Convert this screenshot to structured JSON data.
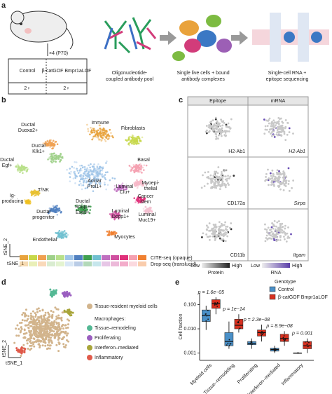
{
  "panel_a": {
    "label": "a",
    "mouse_note": "×4 (P70)",
    "groups": [
      "Control",
      "β-catGOF Bmpr1aLOF"
    ],
    "counts": [
      "2♀",
      "2♀"
    ],
    "steps": [
      [
        "Oligonucleotide-",
        "coupled antibody pool"
      ],
      [
        "Single live cells + bound",
        "antibody complexes"
      ],
      [
        "Single-cell RNA +",
        "epitope sequencing"
      ]
    ]
  },
  "panel_b": {
    "label": "b",
    "clusters": [
      [
        "Immune"
      ],
      [
        "Fibroblasts"
      ],
      [
        "Ductal",
        "Duoxa2+"
      ],
      [
        "Ductal",
        "Klk1+"
      ],
      [
        "Ductal",
        "Egf+"
      ],
      [
        "Basal"
      ],
      [
        "Acinar",
        "Prol1+"
      ],
      [
        "Myoepi-",
        "thelial"
      ],
      [
        "Luminal",
        "Clu+"
      ],
      [
        "Cancer",
        "stem"
      ],
      [
        "Ig-",
        "producing"
      ],
      [
        "T/NK"
      ],
      [
        "Luminal",
        "Muc19+"
      ],
      [
        "Ductal",
        "progenitor"
      ],
      [
        "Ductal",
        "Smgc+",
        "Esp8+"
      ],
      [
        "Luminal",
        "Dcpp1+"
      ],
      [
        "Endothelial"
      ],
      [
        "Myocytes"
      ]
    ],
    "axis_y": "tSNE_2",
    "axis_x": "tSNE_1",
    "legend": [
      "CITE-seq (opaque)",
      "Drop-seq (translucid)"
    ]
  },
  "panel_c": {
    "label": "c",
    "columns": [
      "Epitope",
      "mRNA"
    ],
    "rows": [
      [
        "H2-Ab1",
        "H2-Ab1"
      ],
      [
        "CD172a",
        "Sirpa"
      ],
      [
        "CD11b",
        "Itgam"
      ]
    ],
    "scales": [
      {
        "low": "Low",
        "high": "High",
        "title": "Protein"
      },
      {
        "low": "Low",
        "high": "High",
        "title": "RNA"
      }
    ]
  },
  "panel_d": {
    "label": "d",
    "legend": [
      "Tissue-resident myeloid cells",
      "Macrophages:",
      "Tissue–remodeling",
      "Proliferating",
      "Interferon–mediated",
      "Inflammatory"
    ],
    "axis_y": "tSNE_2",
    "axis_x": "tSNE_1"
  },
  "chart_data": {
    "type": "box",
    "panel_label": "e",
    "y_label": "Cell fraction",
    "log_y": true,
    "ylim": [
      0.0005,
      0.3
    ],
    "yticks": [
      {
        "value": 0.001,
        "label": "0.001"
      },
      {
        "value": 0.01,
        "label": "0.010"
      },
      {
        "value": 0.1,
        "label": "0.100"
      }
    ],
    "categories": [
      "Myeloid cells",
      "Tissue–remodeling",
      "Proliferating",
      "Interferon–mediated",
      "Inflammatory"
    ],
    "annotations": [
      "p = 1.6e−05",
      "p = 1e−14",
      "p = 2.3e−08",
      "p = 8.9e−08",
      "p = 0.001"
    ],
    "legend_title": "Genotype",
    "series": [
      {
        "name": "Control",
        "color": "#4a90c8",
        "values": [
          {
            "min": 0.009,
            "q1": 0.02,
            "median": 0.035,
            "q3": 0.06,
            "max": 0.09
          },
          {
            "min": 0.0015,
            "q1": 0.002,
            "median": 0.003,
            "q3": 0.007,
            "max": 0.02
          },
          {
            "min": 0.0015,
            "q1": 0.0022,
            "median": 0.0025,
            "q3": 0.003,
            "max": 0.004
          },
          {
            "min": 0.001,
            "q1": 0.0012,
            "median": 0.0014,
            "q3": 0.0016,
            "max": 0.002
          },
          {
            "min": 0.001,
            "q1": 0.001,
            "median": 0.001,
            "q3": 0.001,
            "max": 0.001
          }
        ]
      },
      {
        "name": "β-catGOF Bmpr1aLOF",
        "color": "#d7301f",
        "values": [
          {
            "min": 0.04,
            "q1": 0.07,
            "median": 0.11,
            "q3": 0.16,
            "max": 0.2
          },
          {
            "min": 0.007,
            "q1": 0.01,
            "median": 0.014,
            "q3": 0.025,
            "max": 0.04
          },
          {
            "min": 0.003,
            "q1": 0.005,
            "median": 0.007,
            "q3": 0.009,
            "max": 0.015
          },
          {
            "min": 0.002,
            "q1": 0.003,
            "median": 0.004,
            "q3": 0.006,
            "max": 0.008
          },
          {
            "min": 0.001,
            "q1": 0.0015,
            "median": 0.002,
            "q3": 0.003,
            "max": 0.004
          }
        ]
      }
    ]
  }
}
